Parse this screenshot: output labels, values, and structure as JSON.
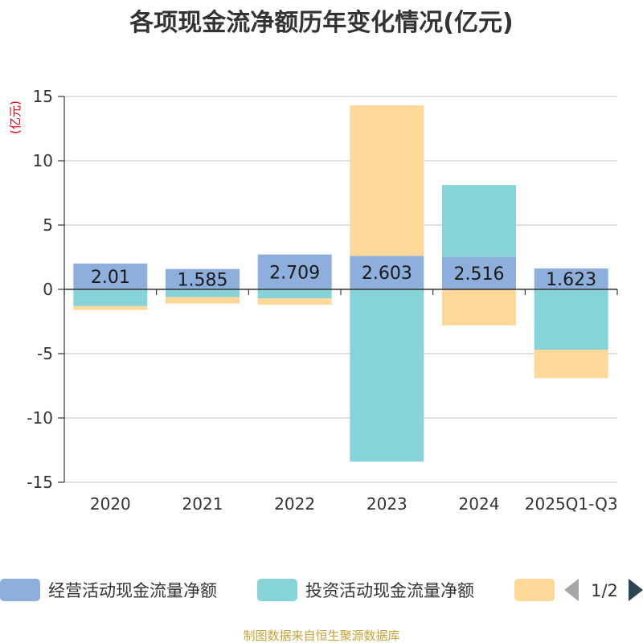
{
  "chart_data": {
    "type": "bar",
    "stacked": true,
    "title": "各项现金流净额历年变化情况(亿元)",
    "ylabel": "(亿元)",
    "xlabel": "",
    "ylim": [
      -15,
      15
    ],
    "yticks": [
      15,
      10,
      5,
      0,
      -5,
      -10,
      -15
    ],
    "categories": [
      "2020",
      "2021",
      "2022",
      "2023",
      "2024",
      "2025Q1-Q3"
    ],
    "series": [
      {
        "name": "经营活动现金流量净额",
        "color": "#8eaedb",
        "values": [
          2.01,
          1.585,
          2.709,
          2.603,
          2.516,
          1.623
        ],
        "labels": [
          "2.01",
          "1.585",
          "2.709",
          "2.603",
          "2.516",
          "1.623"
        ]
      },
      {
        "name": "投资活动现金流量净额",
        "color": "#86d4d8",
        "values": [
          -1.3,
          -0.6,
          -0.7,
          -13.4,
          5.6,
          -4.7
        ]
      },
      {
        "name": "",
        "color": "#fdd898",
        "values": [
          -0.3,
          -0.5,
          -0.5,
          11.7,
          -2.8,
          -2.2
        ]
      }
    ],
    "legend": {
      "position": "bottom",
      "page": "1/2"
    }
  },
  "source": "制图数据来自恒生聚源数据库"
}
